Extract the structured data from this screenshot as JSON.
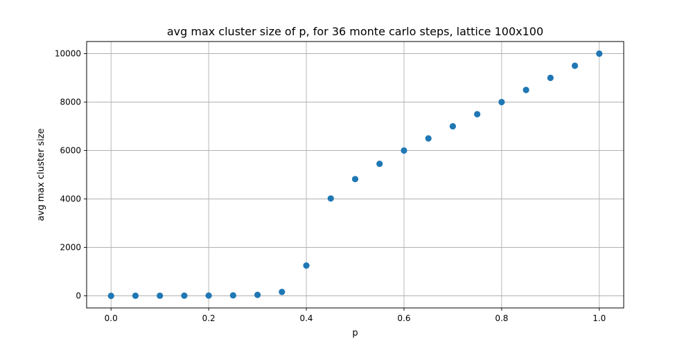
{
  "chart_data": {
    "type": "scatter",
    "title": "avg max cluster size of p, for 36 monte carlo steps, lattice 100x100",
    "xlabel": "p",
    "ylabel": "avg max cluster size",
    "xlim": [
      -0.05,
      1.05
    ],
    "ylim": [
      -500,
      10500
    ],
    "xticks": [
      0.0,
      0.2,
      0.4,
      0.6,
      0.8,
      1.0
    ],
    "xtick_labels": [
      "0.0",
      "0.2",
      "0.4",
      "0.6",
      "0.8",
      "1.0"
    ],
    "yticks": [
      0,
      2000,
      4000,
      6000,
      8000,
      10000
    ],
    "ytick_labels": [
      "0",
      "2000",
      "4000",
      "6000",
      "8000",
      "10000"
    ],
    "grid": true,
    "legend": "none",
    "marker_color": "#1f77b4",
    "series": [
      {
        "x": [
          0.0,
          0.05,
          0.1,
          0.15,
          0.2,
          0.25,
          0.3,
          0.35,
          0.4,
          0.45,
          0.5,
          0.55,
          0.6,
          0.65,
          0.7,
          0.75,
          0.8,
          0.85,
          0.9,
          0.95,
          1.0
        ],
        "y": [
          1,
          3,
          5,
          8,
          12,
          18,
          40,
          160,
          1250,
          4020,
          4820,
          5450,
          6000,
          6500,
          7000,
          7500,
          8000,
          8500,
          9000,
          9500,
          10000
        ]
      }
    ]
  }
}
